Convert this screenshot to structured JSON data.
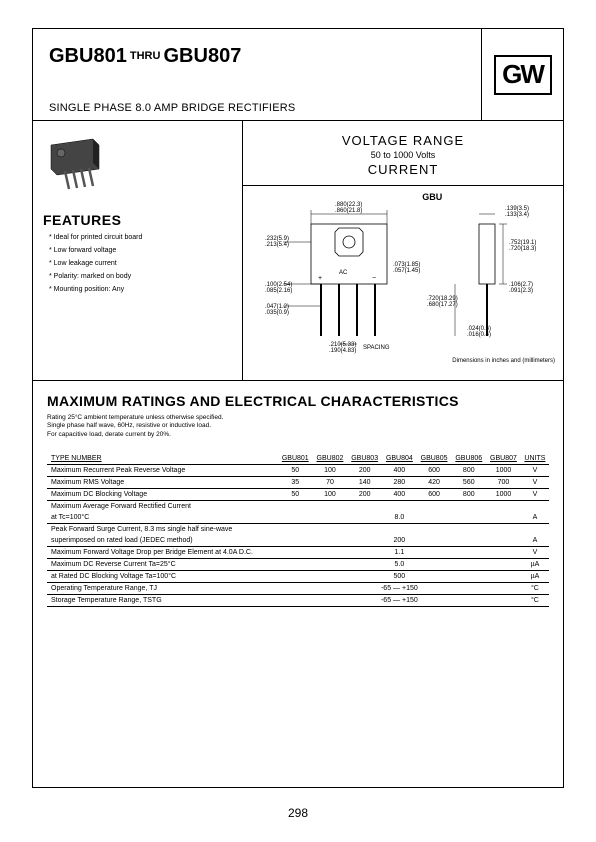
{
  "header": {
    "part_from": "GBU801",
    "thru": "THRU",
    "part_to": "GBU807",
    "subtitle": "SINGLE PHASE 8.0 AMP BRIDGE RECTIFIERS",
    "logo": "GW"
  },
  "voltage": {
    "title": "VOLTAGE RANGE",
    "range": "50 to 1000 Volts",
    "current": "CURRENT"
  },
  "features": {
    "heading": "FEATURES",
    "items": [
      "* Ideal for printed circuit board",
      "* Low forward voltage",
      "* Low leakage current",
      "* Polarity: marked on body",
      "* Mounting position: Any"
    ]
  },
  "diagram": {
    "label": "GBU",
    "dims": {
      "d1": ".880(22.3)",
      "d2": ".860(21.8)",
      "d3": ".232(5.9)",
      "d4": ".213(5.4)",
      "d5": ".100(2.54)",
      "d6": ".085(2.16)",
      "d7": ".047(1.2)",
      "d8": ".035(0.9)",
      "d9": ".073(1.85)",
      "d10": ".057(1.45)",
      "d11": ".210(5.33)",
      "d12": ".190(4.83)",
      "spacing": "SPACING",
      "d13": ".139(3.5)",
      "d14": ".133(3.4)",
      "d15": ".752(19.1)",
      "d16": ".720(18.3)",
      "d17": ".720(18.29)",
      "d18": ".680(17.27)",
      "d19": ".106(2.7)",
      "d20": ".091(2.3)",
      "d21": ".024(0.6)",
      "d22": ".016(0.4)",
      "ac": "AC",
      "footer": "Dimensions in inches and (millimeters)"
    }
  },
  "ratings": {
    "heading": "MAXIMUM RATINGS AND ELECTRICAL CHARACTERISTICS",
    "notes": [
      "Rating 25°C ambient temperature unless otherwise specified.",
      "Single phase half wave, 60Hz, resistive or inductive load.",
      "For capacitive load, derate current by 20%."
    ],
    "columns": [
      "TYPE NUMBER",
      "GBU801",
      "GBU802",
      "GBU803",
      "GBU804",
      "GBU805",
      "GBU806",
      "GBU807",
      "UNITS"
    ],
    "rows": [
      {
        "label": "Maximum Recurrent Peak Reverse Voltage",
        "v": [
          "50",
          "100",
          "200",
          "400",
          "600",
          "800",
          "1000"
        ],
        "u": "V"
      },
      {
        "label": "Maximum RMS Voltage",
        "v": [
          "35",
          "70",
          "140",
          "280",
          "420",
          "560",
          "700"
        ],
        "u": "V"
      },
      {
        "label": "Maximum DC Blocking Voltage",
        "v": [
          "50",
          "100",
          "200",
          "400",
          "600",
          "800",
          "1000"
        ],
        "u": "V"
      },
      {
        "label": "Maximum Average Forward Rectified Current",
        "sub": "at Tc=100°C",
        "span": "8.0",
        "u": "A"
      },
      {
        "label": "Peak Forward Surge Current, 8.3 ms single half sine-wave",
        "sub": "superimposed on rated load (JEDEC method)",
        "span": "200",
        "u": "A"
      },
      {
        "label": "Maximum Forward Voltage Drop per Bridge Element at 4.0A D.C.",
        "span": "1.1",
        "u": "V"
      },
      {
        "label": "Maximum DC Reverse Current            Ta=25°C",
        "span": "5.0",
        "u": "µA"
      },
      {
        "label": "at Rated DC Blocking Voltage            Ta=100°C",
        "span": "500",
        "u": "µA"
      },
      {
        "label": "Operating Temperature Range, TJ",
        "span": "-65 — +150",
        "u": "°C"
      },
      {
        "label": "Storage Temperature Range, TSTG",
        "span": "-65 — +150",
        "u": "°C"
      }
    ]
  },
  "page": "298"
}
